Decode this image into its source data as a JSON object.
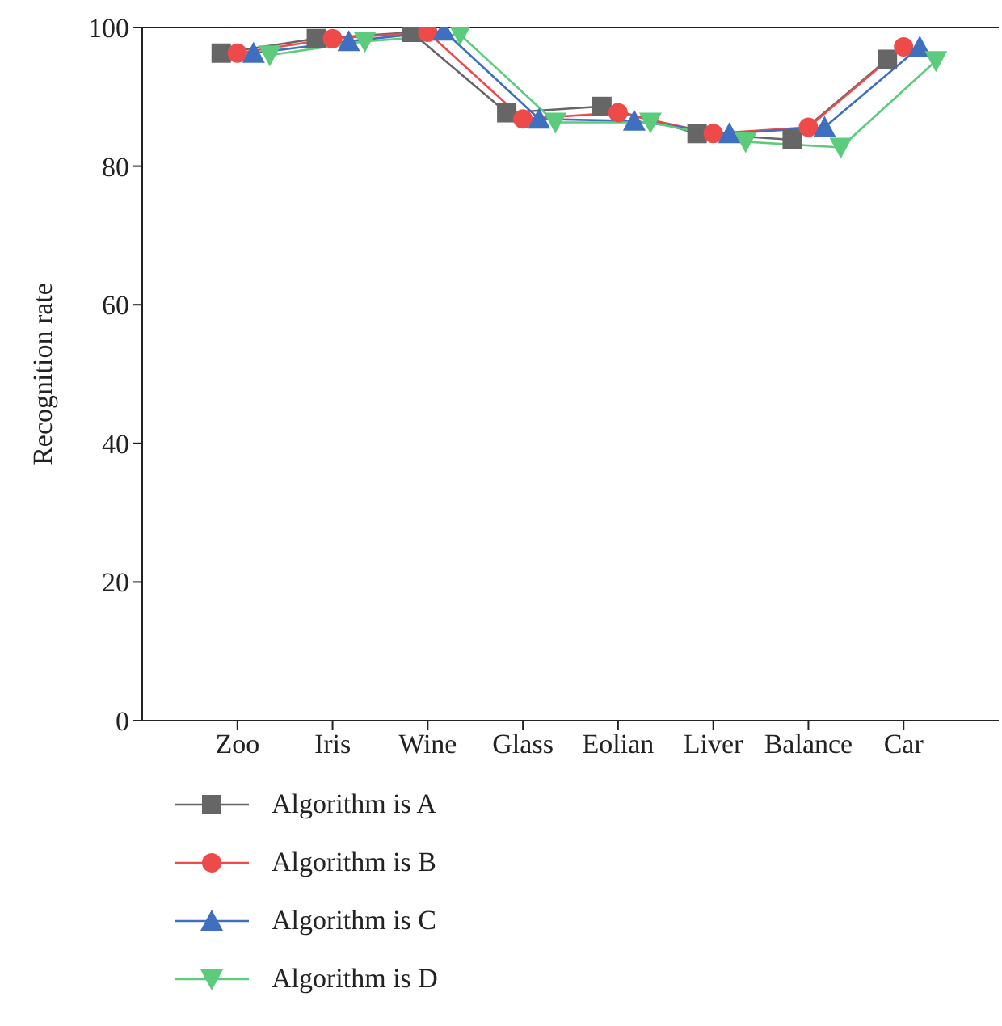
{
  "chart_data": {
    "type": "line",
    "ylabel": "Recognition rate",
    "categories": [
      "Zoo",
      "Iris",
      "Wine",
      "Glass",
      "Eolian",
      "Liver",
      "Balance",
      "Car"
    ],
    "ylim": [
      0,
      100
    ],
    "yticks": [
      0,
      20,
      40,
      60,
      80,
      100
    ],
    "grid": false,
    "legend": "bottom",
    "line_style": "solid",
    "series": [
      {
        "name": "Algorithm is A",
        "color": "#666666",
        "marker": "square",
        "values": [
          96.3,
          98.4,
          99.3,
          87.7,
          88.6,
          84.7,
          83.8,
          95.4
        ]
      },
      {
        "name": "Algorithm is B",
        "color": "#ef4a4a",
        "marker": "circle",
        "values": [
          96.3,
          98.4,
          99.3,
          86.8,
          87.7,
          84.7,
          85.6,
          97.2
        ]
      },
      {
        "name": "Algorithm is C",
        "color": "#3f6fbf",
        "marker": "triangle",
        "values": [
          96.3,
          98,
          99.5,
          86.8,
          86.5,
          84.7,
          85.6,
          97.2
        ]
      },
      {
        "name": "Algorithm is D",
        "color": "#5ccb7c",
        "marker": "triangle-down",
        "values": [
          96,
          98,
          99,
          86.3,
          86.3,
          83.5,
          82.7,
          95.2
        ]
      }
    ]
  }
}
